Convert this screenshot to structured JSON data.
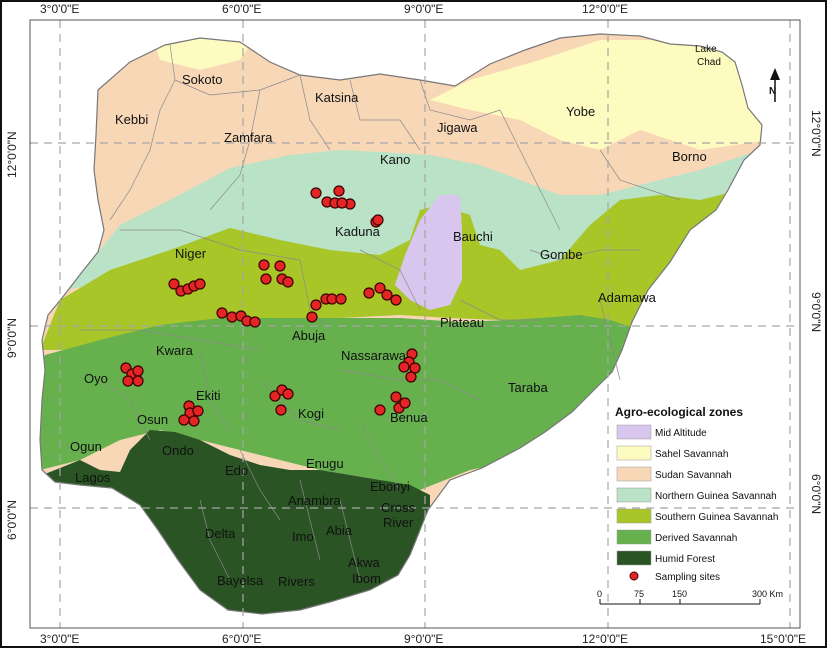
{
  "coordinates": {
    "top": [
      "3°0'0\"E",
      "6°0'0\"E",
      "9°0'0\"E",
      "12°0'0\"E"
    ],
    "bottom": [
      "3°0'0\"E",
      "6°0'0\"E",
      "9°0'0\"E",
      "12°0'0\"E",
      "15°0'0\"E"
    ],
    "left": [
      "12°0'0\"N",
      "9°0'0\"N",
      "6°0'0\"N"
    ],
    "right": [
      "12°0'0\"N",
      "9°0'0\"N",
      "6°0'0\"N"
    ]
  },
  "places": {
    "lake_chad": [
      "Lake",
      "Chad"
    ],
    "sokoto": "Sokoto",
    "katsina": "Katsina",
    "kebbi": "Kebbi",
    "zamfara": "Zamfara",
    "jigawa": "Jigawa",
    "yobe": "Yobe",
    "kano": "Kano",
    "borno": "Borno",
    "kaduna": "Kaduna",
    "bauchi": "Bauchi",
    "niger": "Niger",
    "gombe": "Gombe",
    "adamawa": "Adamawa",
    "abuja": "Abuja",
    "plateau": "Plateau",
    "kwara": "Kwara",
    "nassarawa": "Nassarawa",
    "oyo": "Oyo",
    "taraba": "Taraba",
    "ekiti": "Ekiti",
    "osun": "Osun",
    "kogi": "Kogi",
    "benua": "Benua",
    "ogun": "Ogun",
    "ondo": "Ondo",
    "lagos": "Lagos",
    "edo": "Edo",
    "enugu": "Enugu",
    "ebonyi": "Ebonyi",
    "anambra": "Anambra",
    "cross_river": [
      "Cross",
      "River"
    ],
    "delta": "Delta",
    "imo": "Imo",
    "abia": "Abia",
    "akwa_ibom": [
      "Akwa",
      "Ibom"
    ],
    "bayelsa": "Bayelsa",
    "rivers": "Rivers"
  },
  "legend": {
    "title": "Agro-ecological zones",
    "items": [
      {
        "label": "Mid Altitude",
        "color": "#d9c6ee"
      },
      {
        "label": "Sahel Savannah",
        "color": "#fdfbc0"
      },
      {
        "label": "Sudan Savannah",
        "color": "#f8d7b7"
      },
      {
        "label": "Northern Guinea Savannah",
        "color": "#b9e2c6"
      },
      {
        "label": "Southern Guinea Savannah",
        "color": "#a8c628"
      },
      {
        "label": "Derived Savannah",
        "color": "#66b04e"
      },
      {
        "label": "Humid Forest",
        "color": "#2a5424"
      }
    ],
    "sites_label": "Sampling sites",
    "sites_color": "#e32526"
  },
  "scale_bar": {
    "ticks": [
      "0",
      "75",
      "150",
      "300 Km"
    ]
  },
  "north_arrow": "N"
}
